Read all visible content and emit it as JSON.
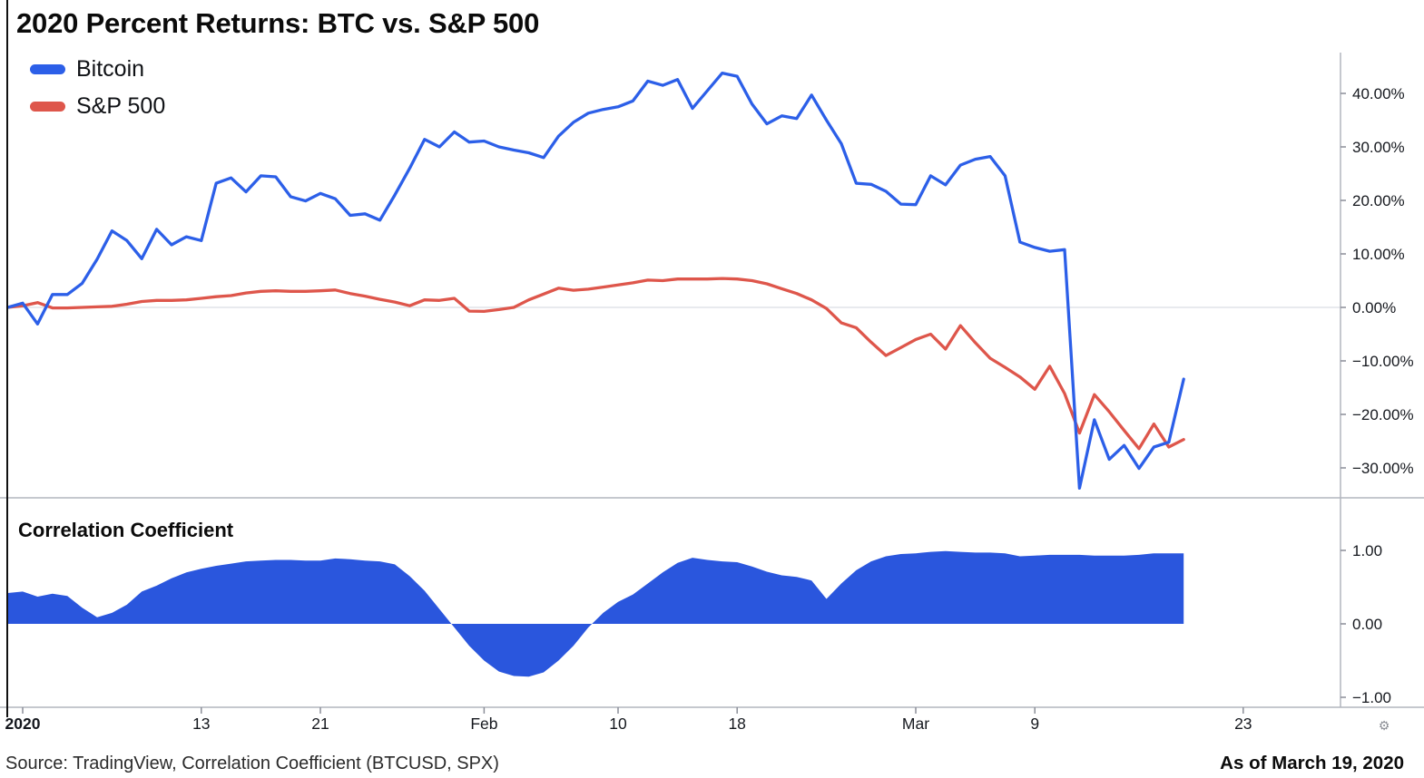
{
  "title": "2020 Percent Returns: BTC vs. S&P 500",
  "legend": [
    {
      "label": "Bitcoin",
      "color": "#2c5fe8"
    },
    {
      "label": "S&P 500",
      "color": "#de564b"
    }
  ],
  "panel2_title": "Correlation Coefficient",
  "footer": {
    "source": "Source: TradingView, Correlation Coefficient (BTCUSD, SPX)",
    "as_of": "As of March 19, 2020"
  },
  "gear_icon": "⚙",
  "colors": {
    "bitcoin": "#2c5fe8",
    "sp500": "#de564b",
    "corr_fill": "#2a56dd",
    "grid": "#e1e3e8",
    "axis": "#b2b5be",
    "tick": "#8b8e98",
    "label_text": "#15181e",
    "left_border": "#111111"
  },
  "chart_data": [
    {
      "type": "line",
      "title": "2020 Percent Returns: BTC vs. S&P 500",
      "xlabel": "",
      "ylabel": "percent return",
      "x_unit": "daily, Dec 31 2019 (index 0) through Mar 19 2020 (index 79)",
      "ylim": [
        -36,
        47.5
      ],
      "grid": "horizontal zero line only",
      "legend_position": "top-left",
      "x_ticks": [
        {
          "label": "2020",
          "i": 1,
          "bold": true
        },
        {
          "label": "13",
          "i": 13
        },
        {
          "label": "21",
          "i": 21
        },
        {
          "label": "Feb",
          "i": 32
        },
        {
          "label": "10",
          "i": 41
        },
        {
          "label": "18",
          "i": 49
        },
        {
          "label": "Mar",
          "i": 61
        },
        {
          "label": "9",
          "i": 69
        },
        {
          "label": "23",
          "i": 83
        }
      ],
      "y_ticks": [
        {
          "label": "40.00%",
          "v": 40
        },
        {
          "label": "30.00%",
          "v": 30
        },
        {
          "label": "20.00%",
          "v": 20
        },
        {
          "label": "10.00%",
          "v": 10
        },
        {
          "label": "0.00%",
          "v": 0
        },
        {
          "label": "−10.00%",
          "v": -10
        },
        {
          "label": "−20.00%",
          "v": -20
        },
        {
          "label": "−30.00%",
          "v": -30
        }
      ],
      "series": [
        {
          "name": "Bitcoin",
          "color": "#2c5fe8",
          "values": [
            0,
            0.8,
            -3.1,
            2.4,
            2.4,
            4.5,
            9,
            14.3,
            12.5,
            9.1,
            14.6,
            11.7,
            13.2,
            12.5,
            23.2,
            24.2,
            21.6,
            24.6,
            24.4,
            20.7,
            19.9,
            21.3,
            20.3,
            17.2,
            17.5,
            16.3,
            21,
            26,
            31.4,
            30,
            32.8,
            30.9,
            31.1,
            30,
            29.4,
            28.9,
            28,
            32,
            34.6,
            36.3,
            37,
            37.5,
            38.6,
            42.3,
            41.5,
            42.6,
            37.2,
            40.5,
            43.8,
            43.2,
            38,
            34.3,
            35.8,
            35.3,
            39.7,
            35,
            30.6,
            23.2,
            23,
            21.7,
            19.3,
            19.2,
            24.6,
            22.9,
            26.6,
            27.7,
            28.2,
            24.6,
            12.2,
            11.2,
            10.5,
            10.8,
            -33.8,
            -21,
            -28.4,
            -25.8,
            -30.1,
            -26.1,
            -25.2,
            -13.4
          ]
        },
        {
          "name": "S&P 500",
          "color": "#de564b",
          "values": [
            0,
            0.3,
            0.9,
            -0.1,
            -0.1,
            0,
            0.1,
            0.2,
            0.6,
            1.1,
            1.3,
            1.3,
            1.4,
            1.7,
            2,
            2.2,
            2.7,
            3,
            3.1,
            3,
            3,
            3.1,
            3.25,
            2.6,
            2.1,
            1.5,
            1,
            0.3,
            1.4,
            1.3,
            1.7,
            -0.7,
            -0.75,
            -0.4,
            0,
            1.4,
            2.5,
            3.6,
            3.2,
            3.4,
            3.8,
            4.2,
            4.6,
            5.1,
            5,
            5.3,
            5.3,
            5.3,
            5.4,
            5.3,
            5,
            4.4,
            3.5,
            2.6,
            1.4,
            -0.2,
            -2.9,
            -3.8,
            -6.5,
            -9,
            -7.5,
            -6,
            -5,
            -7.8,
            -3.4,
            -6.6,
            -9.5,
            -11.2,
            -13,
            -15.3,
            -11,
            -16.1,
            -23.5,
            -16.3,
            -19.5,
            -23,
            -26.4,
            -21.8,
            -26.1,
            -24.7
          ]
        }
      ]
    },
    {
      "type": "area",
      "title": "Correlation Coefficient",
      "name": "Correlation Coefficient (BTCUSD, SPX)",
      "color": "#2a56dd",
      "baseline": 0,
      "ylim": [
        -1.15,
        1.15
      ],
      "x_unit": "same daily axis as price panel",
      "y_ticks": [
        {
          "label": "1.00",
          "v": 1
        },
        {
          "label": "0.00",
          "v": 0
        },
        {
          "label": "−1.00",
          "v": -1
        }
      ],
      "values": [
        0.42,
        0.44,
        0.37,
        0.41,
        0.38,
        0.22,
        0.09,
        0.15,
        0.26,
        0.44,
        0.52,
        0.62,
        0.7,
        0.75,
        0.79,
        0.82,
        0.85,
        0.86,
        0.87,
        0.87,
        0.86,
        0.86,
        0.89,
        0.88,
        0.86,
        0.85,
        0.81,
        0.65,
        0.45,
        0.2,
        -0.05,
        -0.3,
        -0.5,
        -0.65,
        -0.71,
        -0.72,
        -0.66,
        -0.5,
        -0.3,
        -0.05,
        0.15,
        0.3,
        0.4,
        0.55,
        0.7,
        0.83,
        0.9,
        0.87,
        0.85,
        0.84,
        0.78,
        0.71,
        0.66,
        0.64,
        0.59,
        0.34,
        0.55,
        0.73,
        0.85,
        0.92,
        0.95,
        0.96,
        0.98,
        0.99,
        0.98,
        0.97,
        0.97,
        0.96,
        0.92,
        0.93,
        0.94,
        0.94,
        0.94,
        0.93,
        0.93,
        0.93,
        0.94,
        0.96,
        0.96,
        0.96
      ]
    }
  ]
}
